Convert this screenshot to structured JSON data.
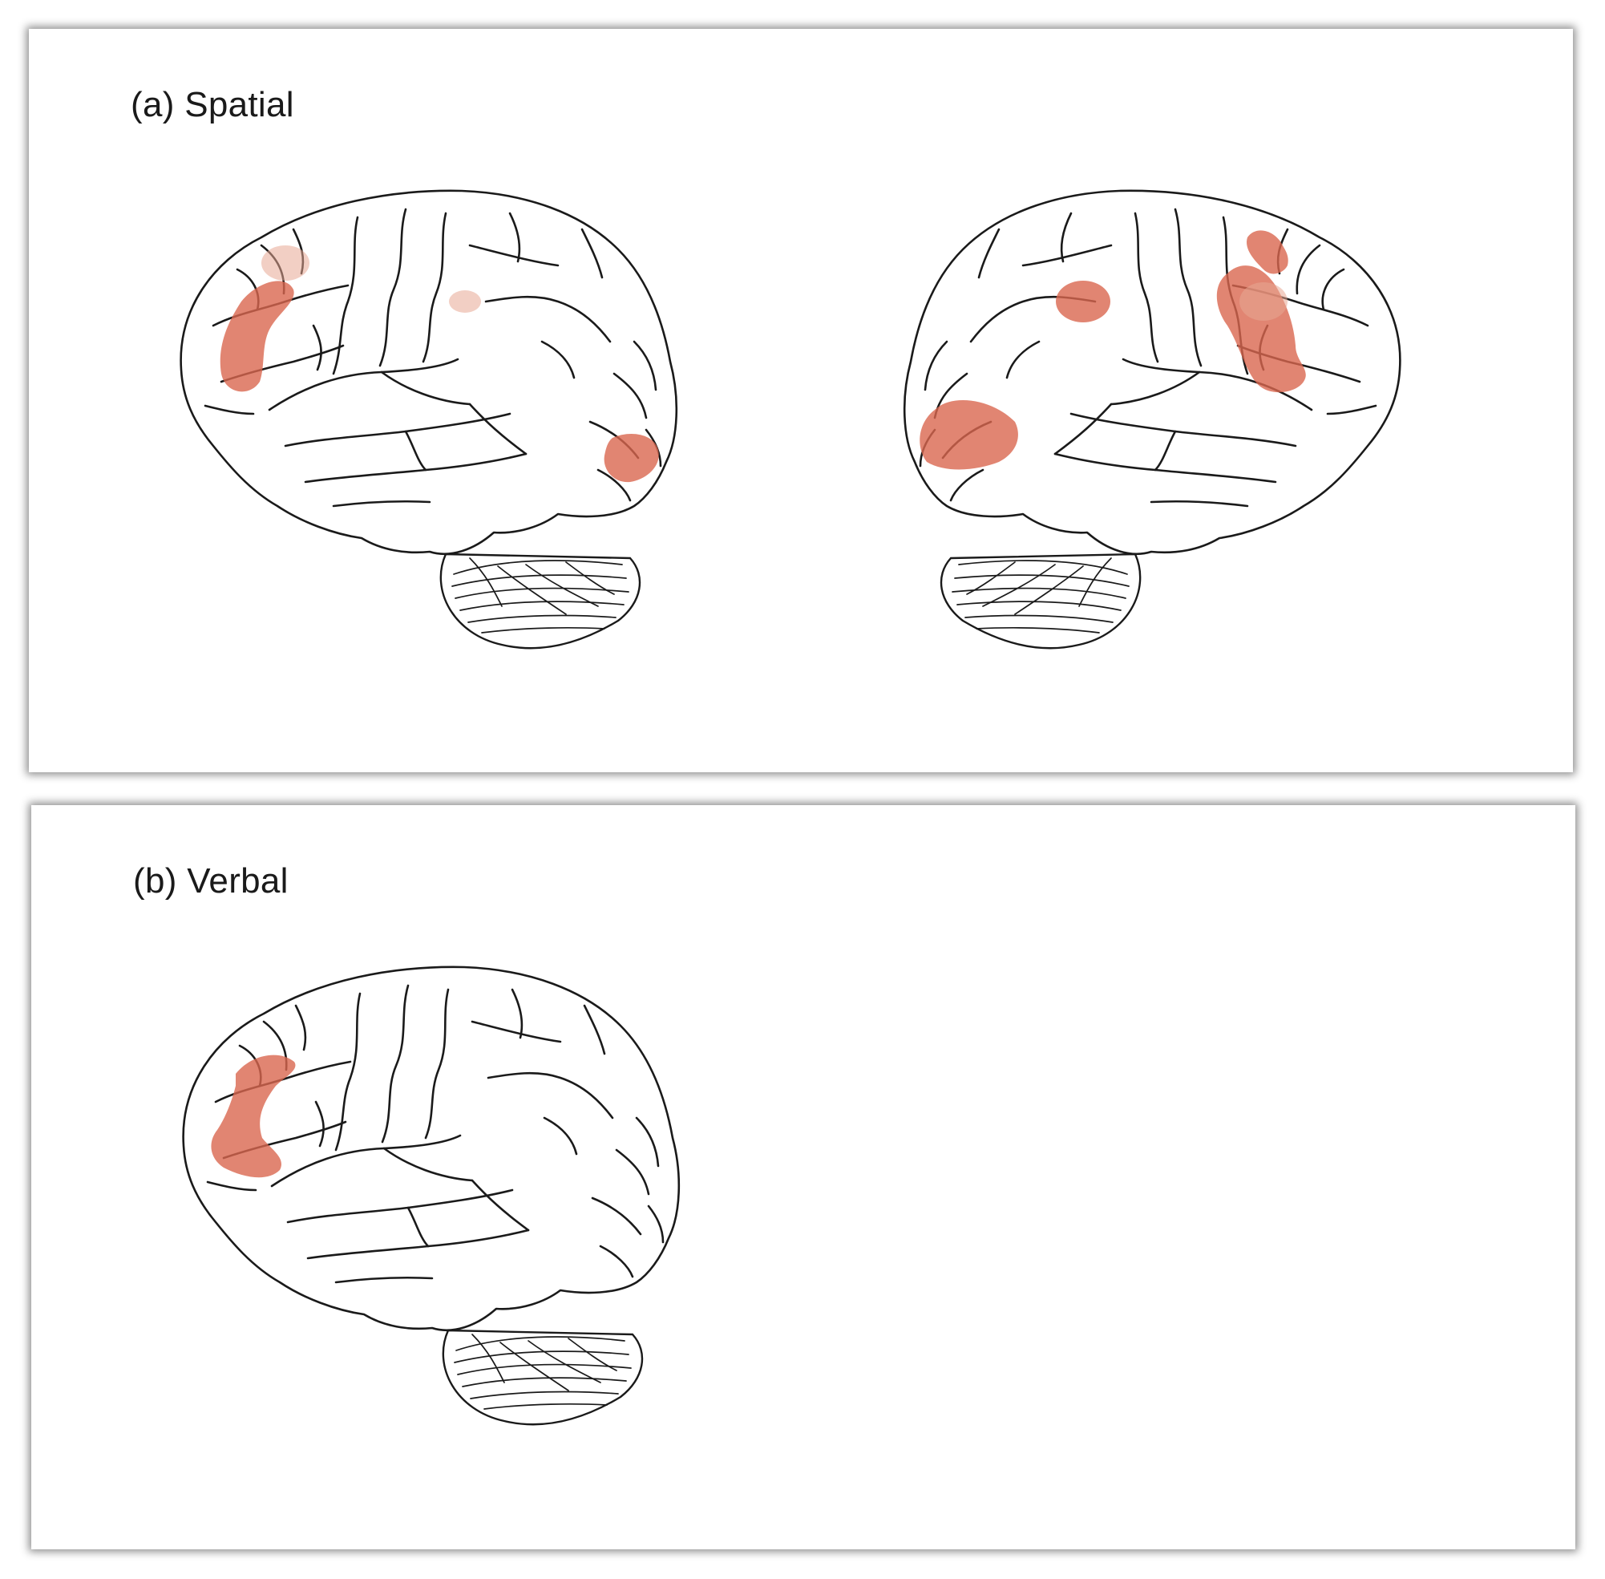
{
  "panels": {
    "a": {
      "label": "(a) Spatial"
    },
    "b": {
      "label": "(b) Verbal"
    }
  },
  "colors": {
    "activation": "#d9674f",
    "activation_faint": "#e8a894",
    "outline": "#1a1a1a",
    "background": "#ffffff"
  }
}
